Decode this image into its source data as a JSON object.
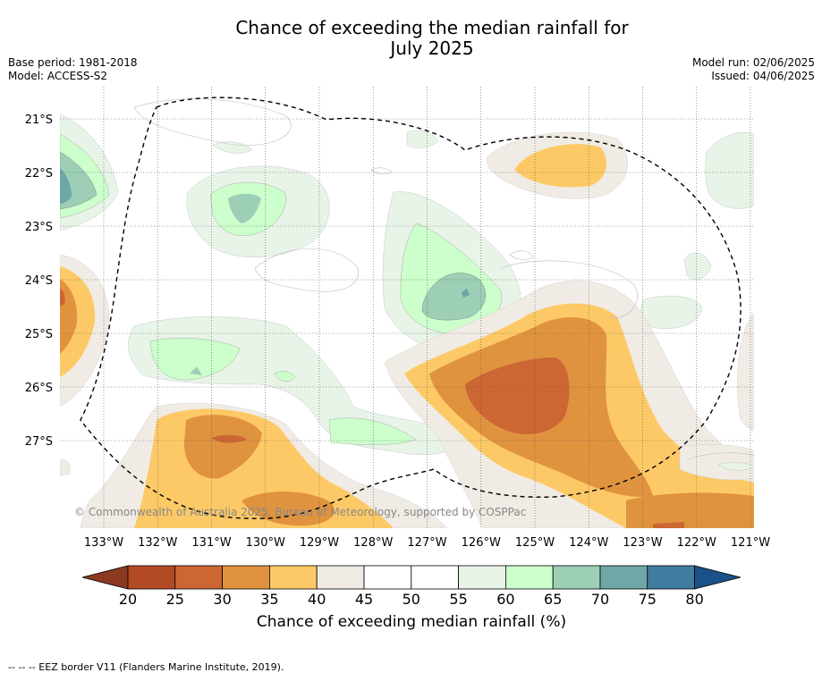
{
  "title_line1": "Chance of exceeding the median rainfall for",
  "title_line2": "July 2025",
  "base_period": "Base period: 1981-2018",
  "model": "Model: ACCESS-S2",
  "model_run": "Model run: 02/06/2025",
  "issued": "Issued: 04/06/2025",
  "copyright": "© Commonwealth of Australia 2025, Bureau of Meteorology, supported by COSPPac",
  "lon_ticks": [
    "133°W",
    "132°W",
    "131°W",
    "130°W",
    "129°W",
    "128°W",
    "127°W",
    "126°W",
    "125°W",
    "124°W",
    "123°W",
    "122°W",
    "121°W"
  ],
  "lat_ticks": [
    "21°S",
    "22°S",
    "23°S",
    "24°S",
    "25°S",
    "26°S",
    "27°S"
  ],
  "colorbar": {
    "labels": [
      "20",
      "25",
      "30",
      "35",
      "40",
      "45",
      "50",
      "55",
      "60",
      "65",
      "70",
      "75",
      "80"
    ],
    "colors": [
      "#b34a26",
      "#cc6633",
      "#e0933f",
      "#fdc966",
      "#f0ebe4",
      "#ffffff",
      "#ffffff",
      "#e8f4e8",
      "#ccffcc",
      "#9ccfb5",
      "#6fa7a7",
      "#3f7da0"
    ],
    "under_color": "#8b3a20",
    "over_color": "#1b5189",
    "title": "Chance of exceeding median rainfall (%)"
  },
  "footnote": "--  --  -- EEZ border V11 (Flanders Marine Institute, 2019).",
  "palette": {
    "p20": "#b34a26",
    "p25": "#cc6633",
    "p30": "#e0933f",
    "p35": "#fdc966",
    "p40": "#f0ebe4",
    "p55": "#e8f4e8",
    "p60": "#ccffcc",
    "p65": "#9ccfb5",
    "p70": "#6fa7a7"
  }
}
